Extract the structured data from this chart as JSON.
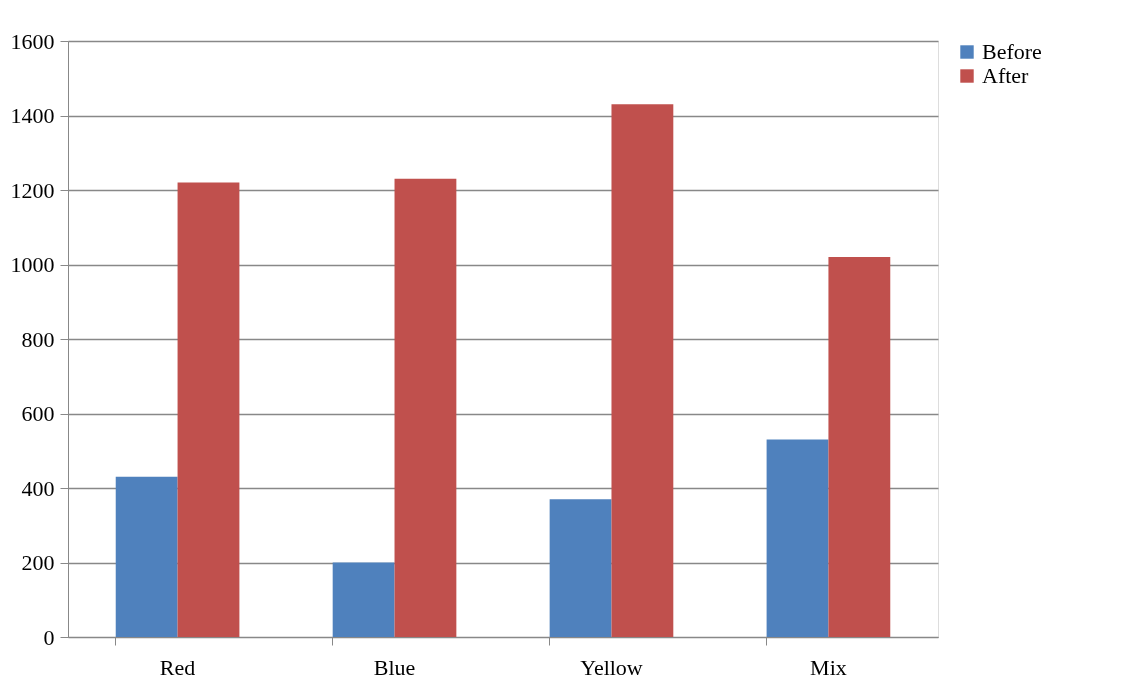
{
  "chart_data": {
    "type": "bar",
    "categories": [
      "Red",
      "Blue",
      "Yellow",
      "Mix"
    ],
    "series": [
      {
        "name": "Before",
        "color": "#4f81bd",
        "values": [
          430,
          200,
          370,
          530
        ]
      },
      {
        "name": "After",
        "color": "#c0504d",
        "values": [
          1220,
          1230,
          1430,
          1020
        ]
      }
    ],
    "ylim": [
      0,
      1600
    ],
    "yticks": [
      0,
      200,
      400,
      600,
      800,
      1000,
      1200,
      1400,
      1600
    ],
    "grid": "y",
    "legend": "right"
  }
}
